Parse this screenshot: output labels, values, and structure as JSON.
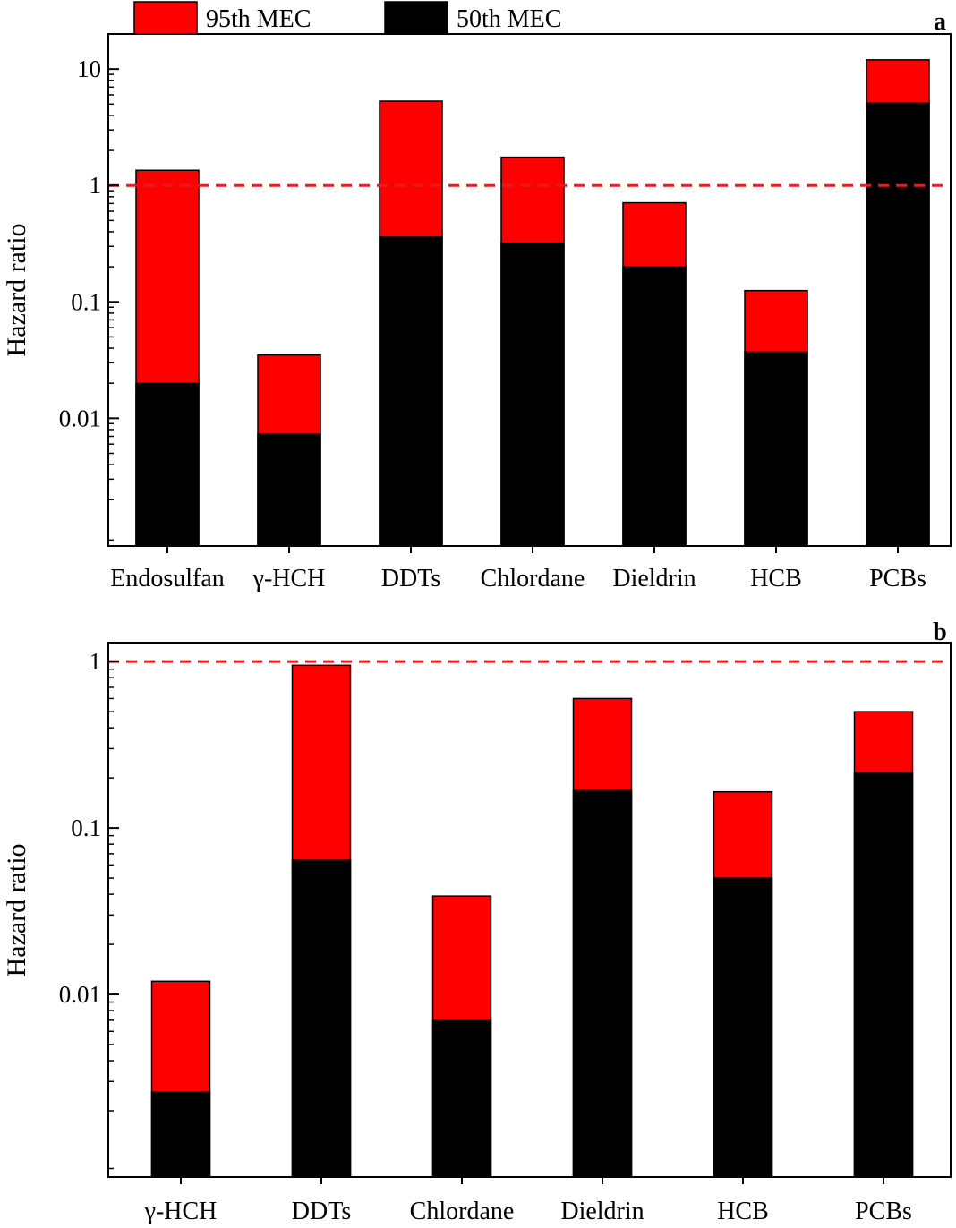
{
  "legend": {
    "items": [
      {
        "label": "95th MEC",
        "color": "#ff0000"
      },
      {
        "label": "50th MEC",
        "color": "#000000"
      }
    ]
  },
  "chart_data": [
    {
      "type": "bar",
      "stacked": "overlay",
      "panel_label": "a",
      "ylabel": "Hazard ratio",
      "yscale": "log",
      "ylim": [
        0.0008,
        20
      ],
      "yticks": [
        0.01,
        0.1,
        1,
        10
      ],
      "ytick_labels": [
        "0.01",
        "0.1",
        "1",
        "10"
      ],
      "threshold": 1,
      "threshold_color": "#e81c1c",
      "categories": [
        "Endosulfan",
        "γ-HCH",
        "DDTs",
        "Chlordane",
        "Dieldrin",
        "HCB",
        "PCBs"
      ],
      "series": [
        {
          "name": "95th MEC",
          "color": "#ff0000",
          "values": [
            1.35,
            0.035,
            5.3,
            1.75,
            0.71,
            0.125,
            12
          ]
        },
        {
          "name": "50th MEC",
          "color": "#000000",
          "values": [
            0.02,
            0.0073,
            0.36,
            0.32,
            0.2,
            0.037,
            5.1
          ]
        }
      ]
    },
    {
      "type": "bar",
      "stacked": "overlay",
      "panel_label": "b",
      "ylabel": "Hazard ratio",
      "yscale": "log",
      "ylim": [
        0.0008,
        1.3
      ],
      "yticks": [
        0.01,
        0.1,
        1
      ],
      "ytick_labels": [
        "0.01",
        "0.1",
        "1"
      ],
      "threshold": 1,
      "threshold_color": "#e81c1c",
      "categories": [
        "γ-HCH",
        "DDTs",
        "Chlordane",
        "Dieldrin",
        "HCB",
        "PCBs"
      ],
      "series": [
        {
          "name": "95th MEC",
          "color": "#ff0000",
          "values": [
            0.012,
            0.95,
            0.039,
            0.6,
            0.165,
            0.5
          ]
        },
        {
          "name": "50th MEC",
          "color": "#000000",
          "values": [
            0.0026,
            0.064,
            0.007,
            0.168,
            0.05,
            0.215
          ]
        }
      ]
    }
  ]
}
